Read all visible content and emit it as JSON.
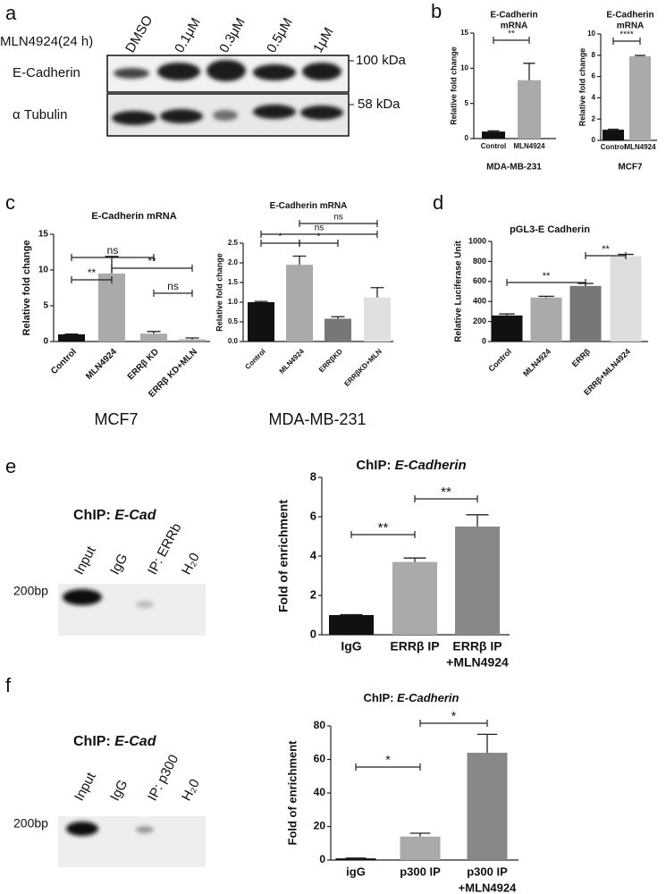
{
  "panels": [
    "a",
    "b",
    "c",
    "d",
    "e",
    "f"
  ],
  "blot_a": {
    "treatment": "MLN4924(24 h)",
    "lanes": [
      "DMSO",
      "0.1μM",
      "0.3μM",
      "0.5μM",
      "1μM"
    ],
    "rows": [
      "E-Cadherin",
      "α Tubulin"
    ],
    "markers": [
      "100 kDa",
      "58 kDa"
    ]
  },
  "gel_e": {
    "title": "ChIP:",
    "title_gene": "E-Cad",
    "lanes": [
      "Input",
      "IgG",
      "IP: ERRb",
      "H₂0"
    ],
    "marker": "200bp"
  },
  "gel_f": {
    "title": "ChIP:",
    "title_gene": "E-Cad",
    "lanes": [
      "Input",
      "IgG",
      "IP: p300",
      "H₂0"
    ],
    "marker": "200bp"
  },
  "chart_data": [
    {
      "type": "bar",
      "title_lines": [
        "E-Cadherin",
        "mRNA"
      ],
      "y_label": "Relative fold change",
      "x_label": "MDA-MB-231",
      "categories": [
        "Control",
        "MLN4924"
      ],
      "values": [
        1,
        8.3
      ],
      "errors": [
        0.1,
        2.4
      ],
      "colors": [
        "#111111",
        "#aaaaaa"
      ],
      "ylim": [
        0,
        15
      ],
      "yticks": [
        0,
        5,
        10,
        15
      ],
      "significance": [
        {
          "pair": [
            0,
            1
          ],
          "label": "**"
        }
      ]
    },
    {
      "type": "bar",
      "title_lines": [
        "E-Cadherin",
        "mRNA"
      ],
      "y_label": "Relative fold change",
      "x_label": "MCF7",
      "categories": [
        "Control",
        "MLN4924"
      ],
      "values": [
        1,
        7.9
      ],
      "errors": [
        0.05,
        0.08
      ],
      "colors": [
        "#111111",
        "#aaaaaa"
      ],
      "ylim": [
        0,
        10
      ],
      "yticks": [
        0,
        2,
        4,
        6,
        8,
        10
      ],
      "significance": [
        {
          "pair": [
            0,
            1
          ],
          "label": "****"
        }
      ]
    },
    {
      "type": "bar",
      "title": "E-Cadherin mRNA",
      "y_label": "Relative fold change",
      "x_label": "MCF7",
      "categories": [
        "Control",
        "MLN4924",
        "ERRβ KD",
        "ERRβ KD+MLN"
      ],
      "values": [
        1,
        9.5,
        1.1,
        0.3
      ],
      "errors": [
        0.05,
        2.4,
        0.3,
        0.2
      ],
      "colors": [
        "#111111",
        "#aaaaaa",
        "#aaaaaa",
        "#aaaaaa"
      ],
      "ylim": [
        0,
        15
      ],
      "yticks": [
        0,
        5,
        10,
        15
      ],
      "significance": [
        {
          "pair": [
            0,
            2
          ],
          "label": "ns"
        },
        {
          "pair": [
            0,
            1
          ],
          "label": "**"
        },
        {
          "pair": [
            1,
            3
          ],
          "label": "**"
        },
        {
          "pair": [
            2,
            3
          ],
          "label": "ns"
        }
      ]
    },
    {
      "type": "bar",
      "title": "E-Cadherin mRNA",
      "y_label": "Relative fold change",
      "x_label": "MDA-MB-231",
      "categories": [
        "Control",
        "MLN4924",
        "ERRβKD",
        "ERRβKD+MLN"
      ],
      "values": [
        1.0,
        1.95,
        0.58,
        1.12
      ],
      "errors": [
        0.02,
        0.22,
        0.05,
        0.25
      ],
      "colors": [
        "#111111",
        "#aaaaaa",
        "#777777",
        "#e0e0e0"
      ],
      "ylim": [
        0,
        2.5
      ],
      "yticks": [
        {
          "value": 0,
          "label": "0.0"
        },
        {
          "value": 0.5,
          "label": "0.5"
        },
        {
          "value": 1,
          "label": "1.0"
        },
        {
          "value": 1.5,
          "label": "1.5"
        },
        {
          "value": 2,
          "label": "2.0"
        },
        {
          "value": 2.5,
          "label": "2.5"
        }
      ],
      "significance": [
        {
          "pair": [
            1,
            3
          ],
          "label": "ns"
        },
        {
          "pair": [
            0,
            3
          ],
          "label": "ns"
        },
        {
          "pair": [
            0,
            1
          ],
          "label": "*"
        },
        {
          "pair": [
            1,
            2
          ],
          "label": "*"
        }
      ]
    },
    {
      "type": "bar",
      "title": "pGL3-E Cadherin",
      "y_label": "Relative Luciferase Unit",
      "categories": [
        "Control",
        "MLN4924",
        "ERRβ",
        "ERRβ+MLN4924"
      ],
      "values": [
        260,
        440,
        555,
        850
      ],
      "errors": [
        15,
        12,
        25,
        20
      ],
      "colors": [
        "#111111",
        "#aaaaaa",
        "#777777",
        "#dddddd"
      ],
      "ylim": [
        0,
        1000
      ],
      "yticks": [
        0,
        200,
        400,
        600,
        800,
        1000
      ],
      "significance": [
        {
          "pair": [
            0,
            2
          ],
          "label": "**"
        },
        {
          "pair": [
            2,
            3
          ],
          "label": "**"
        }
      ]
    },
    {
      "type": "bar",
      "title": "ChIP:",
      "title_gene": "E-Cadherin",
      "y_label": "Fold of enrichment",
      "categories": [
        [
          "IgG"
        ],
        [
          "ERRβ IP"
        ],
        [
          "ERRβ IP",
          "+MLN4924"
        ]
      ],
      "values": [
        1.0,
        3.7,
        5.5
      ],
      "errors": [
        0.02,
        0.2,
        0.6
      ],
      "colors": [
        "#111111",
        "#aaaaaa",
        "#888888"
      ],
      "ylim": [
        0,
        8
      ],
      "yticks": [
        0,
        2,
        4,
        6,
        8
      ],
      "significance": [
        {
          "pair": [
            0,
            1
          ],
          "label": "**"
        },
        {
          "pair": [
            1,
            2
          ],
          "label": "**"
        }
      ]
    },
    {
      "type": "bar",
      "title": "ChIP:",
      "title_gene": "E-Cadherin",
      "y_label": "Fold of enrichment",
      "categories": [
        [
          "igG"
        ],
        [
          "p300 IP"
        ],
        [
          "p300 IP",
          "+MLN4924"
        ]
      ],
      "values": [
        1,
        14,
        64
      ],
      "errors": [
        0.2,
        2,
        11
      ],
      "colors": [
        "#111111",
        "#aaaaaa",
        "#888888"
      ],
      "ylim": [
        0,
        80
      ],
      "yticks": [
        0,
        20,
        40,
        60,
        80
      ],
      "significance": [
        {
          "pair": [
            0,
            1
          ],
          "label": "*"
        },
        {
          "pair": [
            1,
            2
          ],
          "label": "*"
        }
      ]
    }
  ]
}
